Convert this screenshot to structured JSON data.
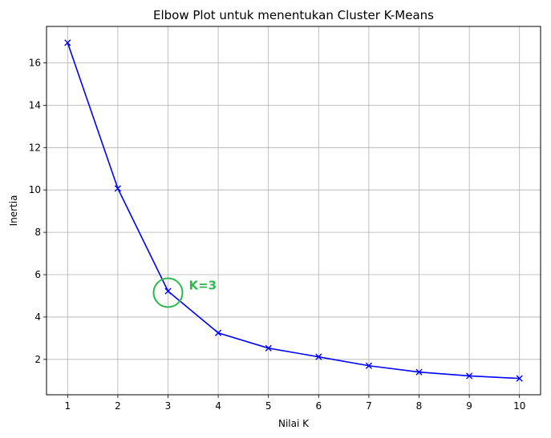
{
  "chart_data": {
    "type": "line",
    "title": "Elbow Plot untuk menentukan Cluster K-Means",
    "xlabel": "Nilai K",
    "ylabel": "Inertia",
    "xlim": [
      0.58,
      10.42
    ],
    "ylim": [
      0.33,
      17.72
    ],
    "grid": true,
    "x": [
      1,
      2,
      3,
      4,
      5,
      6,
      7,
      8,
      9,
      10
    ],
    "series": [
      {
        "values": [
          16.95,
          10.07,
          5.22,
          3.25,
          2.53,
          2.12,
          1.7,
          1.4,
          1.22,
          1.1
        ],
        "color": "#0000ff",
        "marker": "x"
      }
    ],
    "x_ticks": [
      1,
      2,
      3,
      4,
      5,
      6,
      7,
      8,
      9,
      10
    ],
    "y_ticks": [
      2,
      4,
      6,
      8,
      10,
      12,
      14,
      16
    ],
    "annotation": {
      "text": "K=3",
      "x": 3,
      "y": 5.15,
      "color": "#2db84e",
      "marker": "circle"
    }
  }
}
